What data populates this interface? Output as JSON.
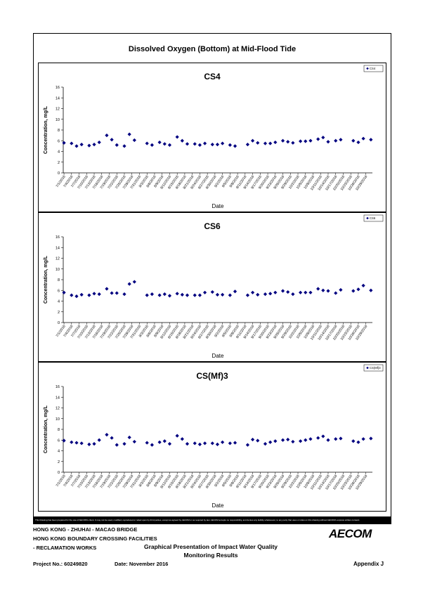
{
  "page_title": "Dissolved Oxygen (Bottom) at Mid-Flood Tide",
  "disclaimer": "This Drawing has been prepared for the use of AECOM's client. It may not be used, modified, reproduced or relied upon by third parties, except as agreed by AECOM or as required by law. AECOM accepts no responsibility, and denies any liability whatsoever, to any party that uses or relies on this drawing without AECOM's express written consent.",
  "footer": {
    "line1": "HONG KONG - ZHUHAI - MACAO BRIDGE",
    "line2": "HONG KONG BOUNDARY CROSSING FACILITIES",
    "line3": "- RECLAMATION WORKS",
    "center1": "Graphical Presentation of Impact Water Quality",
    "center2": "Monitoring Results",
    "project": "Project No.: 60249820",
    "date": "Date: November 2016",
    "appendix": "Appendix J",
    "logo": "AECOM"
  },
  "colors": {
    "marker": "#000080"
  },
  "chart_data": [
    {
      "type": "scatter",
      "title": "CS4",
      "xlabel": "Date",
      "ylabel": "Concentration, mg/L",
      "ylim": [
        0,
        16
      ],
      "yticks": [
        0,
        2,
        4,
        6,
        8,
        10,
        12,
        14,
        16
      ],
      "legend_position": "top-right",
      "series": [
        {
          "name": "CS4",
          "x": [
            "7/1/2016",
            "7/4/2016",
            "7/6/2016",
            "7/8/2016",
            "7/11/2016",
            "7/13/2016",
            "7/15/2016",
            "7/18/2016",
            "7/20/2016",
            "7/22/2016",
            "7/25/2016",
            "7/27/2016",
            "7/29/2016",
            "8/3/2016",
            "8/5/2016",
            "8/8/2016",
            "8/10/2016",
            "8/12/2016",
            "8/15/2016",
            "8/17/2016",
            "8/19/2016",
            "8/22/2016",
            "8/24/2016",
            "8/26/2016",
            "8/29/2016",
            "8/31/2016",
            "9/2/2016",
            "9/5/2016",
            "9/7/2016",
            "9/12/2016",
            "9/14/2016",
            "9/16/2016",
            "9/19/2016",
            "9/21/2016",
            "9/23/2016",
            "9/26/2016",
            "9/28/2016",
            "9/30/2016",
            "10/3/2016",
            "10/5/2016",
            "10/7/2016",
            "10/10/2016",
            "10/12/2016",
            "10/14/2016",
            "10/17/2016",
            "10/19/2016",
            "10/24/2016",
            "10/26/2016",
            "10/28/2016",
            "10/31/2016"
          ],
          "y": [
            5.6,
            5.5,
            5.0,
            5.3,
            5.1,
            5.3,
            5.7,
            7.0,
            6.2,
            5.2,
            5.0,
            7.2,
            6.1,
            5.5,
            5.2,
            5.7,
            5.4,
            5.2,
            6.7,
            6.0,
            5.4,
            5.4,
            5.2,
            5.5,
            5.3,
            5.3,
            5.5,
            5.2,
            5.0,
            5.3,
            6.0,
            5.6,
            5.5,
            5.5,
            5.7,
            6.0,
            5.8,
            5.6,
            5.9,
            5.9,
            6.0,
            6.3,
            6.6,
            5.8,
            6.0,
            6.2,
            6.0,
            5.7,
            6.4,
            6.2
          ]
        }
      ],
      "x_ticks": [
        "7/1/2016",
        "7/4/2016",
        "7/7/2016",
        "7/10/2016",
        "7/13/2016",
        "7/16/2016",
        "7/19/2016",
        "7/22/2016",
        "7/25/2016",
        "7/28/2016",
        "7/31/2016",
        "8/3/2016",
        "8/6/2016",
        "8/9/2016",
        "8/12/2016",
        "8/15/2016",
        "8/18/2016",
        "8/21/2016",
        "8/24/2016",
        "8/27/2016",
        "8/30/2016",
        "9/2/2016",
        "9/5/2016",
        "9/8/2016",
        "9/11/2016",
        "9/14/2016",
        "9/17/2016",
        "9/20/2016",
        "9/23/2016",
        "9/26/2016",
        "9/29/2016",
        "10/2/2016",
        "10/5/2016",
        "10/8/2016",
        "10/11/2016",
        "10/14/2016",
        "10/17/2016",
        "10/20/2016",
        "10/23/2016",
        "10/26/2016",
        "10/29/2016"
      ]
    },
    {
      "type": "scatter",
      "title": "CS6",
      "xlabel": "Date",
      "ylabel": "Concentration, mg/L",
      "ylim": [
        0,
        16
      ],
      "yticks": [
        0,
        2,
        4,
        6,
        8,
        10,
        12,
        14,
        16
      ],
      "legend_position": "top-right",
      "series": [
        {
          "name": "CS6",
          "x": [
            "7/1/2016",
            "7/4/2016",
            "7/6/2016",
            "7/8/2016",
            "7/11/2016",
            "7/13/2016",
            "7/15/2016",
            "7/18/2016",
            "7/20/2016",
            "7/22/2016",
            "7/25/2016",
            "7/27/2016",
            "7/29/2016",
            "8/3/2016",
            "8/5/2016",
            "8/8/2016",
            "8/10/2016",
            "8/12/2016",
            "8/15/2016",
            "8/17/2016",
            "8/19/2016",
            "8/22/2016",
            "8/24/2016",
            "8/26/2016",
            "8/29/2016",
            "8/31/2016",
            "9/2/2016",
            "9/5/2016",
            "9/7/2016",
            "9/12/2016",
            "9/14/2016",
            "9/16/2016",
            "9/19/2016",
            "9/21/2016",
            "9/23/2016",
            "9/26/2016",
            "9/28/2016",
            "9/30/2016",
            "10/3/2016",
            "10/5/2016",
            "10/7/2016",
            "10/10/2016",
            "10/12/2016",
            "10/14/2016",
            "10/17/2016",
            "10/19/2016",
            "10/24/2016",
            "10/26/2016",
            "10/28/2016",
            "10/31/2016"
          ],
          "y": [
            5.6,
            5.1,
            4.9,
            5.2,
            5.1,
            5.4,
            5.3,
            6.3,
            5.5,
            5.5,
            5.3,
            7.2,
            7.6,
            5.1,
            5.3,
            5.1,
            5.3,
            5.0,
            5.4,
            5.2,
            5.1,
            5.1,
            5.1,
            5.6,
            5.7,
            5.2,
            5.2,
            5.1,
            5.8,
            5.1,
            5.6,
            5.2,
            5.3,
            5.4,
            5.6,
            5.9,
            5.7,
            5.3,
            5.6,
            5.6,
            5.6,
            6.3,
            6.0,
            5.9,
            5.5,
            6.1,
            5.9,
            6.2,
            6.9,
            6.0
          ]
        }
      ],
      "x_ticks": [
        "7/1/2016",
        "7/4/2016",
        "7/7/2016",
        "7/10/2016",
        "7/13/2016",
        "7/16/2016",
        "7/19/2016",
        "7/22/2016",
        "7/25/2016",
        "7/28/2016",
        "7/31/2016",
        "8/3/2016",
        "8/6/2016",
        "8/9/2016",
        "8/12/2016",
        "8/15/2016",
        "8/18/2016",
        "8/21/2016",
        "8/24/2016",
        "8/27/2016",
        "8/30/2016",
        "9/2/2016",
        "9/5/2016",
        "9/8/2016",
        "9/11/2016",
        "9/14/2016",
        "9/17/2016",
        "9/20/2016",
        "9/23/2016",
        "9/26/2016",
        "9/29/2016",
        "10/2/2016",
        "10/5/2016",
        "10/8/2016",
        "10/11/2016",
        "10/14/2016",
        "10/17/2016",
        "10/20/2016",
        "10/23/2016",
        "10/26/2016",
        "10/29/2016"
      ]
    },
    {
      "type": "scatter",
      "title": "CS(Mf)3",
      "xlabel": "Date",
      "ylabel": "Concentration, mg/L",
      "ylim": [
        0,
        16
      ],
      "yticks": [
        0,
        2,
        4,
        6,
        8,
        10,
        12,
        14,
        16
      ],
      "legend_position": "top-right",
      "series": [
        {
          "name": "CS(Mf)3",
          "x": [
            "7/1/2016",
            "7/4/2016",
            "7/6/2016",
            "7/8/2016",
            "7/11/2016",
            "7/13/2016",
            "7/15/2016",
            "7/18/2016",
            "7/20/2016",
            "7/22/2016",
            "7/25/2016",
            "7/27/2016",
            "7/29/2016",
            "8/3/2016",
            "8/5/2016",
            "8/8/2016",
            "8/10/2016",
            "8/12/2016",
            "8/15/2016",
            "8/17/2016",
            "8/19/2016",
            "8/22/2016",
            "8/24/2016",
            "8/26/2016",
            "8/29/2016",
            "8/31/2016",
            "9/2/2016",
            "9/5/2016",
            "9/7/2016",
            "9/12/2016",
            "9/14/2016",
            "9/16/2016",
            "9/19/2016",
            "9/21/2016",
            "9/23/2016",
            "9/26/2016",
            "9/28/2016",
            "9/30/2016",
            "10/3/2016",
            "10/5/2016",
            "10/7/2016",
            "10/10/2016",
            "10/12/2016",
            "10/14/2016",
            "10/17/2016",
            "10/19/2016",
            "10/24/2016",
            "10/26/2016",
            "10/28/2016",
            "10/31/2016"
          ],
          "y": [
            5.9,
            5.6,
            5.5,
            5.4,
            5.2,
            5.3,
            6.0,
            7.0,
            6.4,
            5.1,
            5.3,
            6.5,
            5.7,
            5.5,
            5.1,
            5.6,
            5.8,
            5.3,
            6.8,
            6.2,
            5.3,
            5.4,
            5.2,
            5.4,
            5.4,
            5.2,
            5.6,
            5.4,
            5.5,
            5.1,
            6.1,
            5.9,
            5.3,
            5.6,
            5.8,
            6.0,
            6.1,
            5.7,
            5.8,
            6.0,
            6.2,
            6.4,
            6.7,
            6.0,
            6.2,
            6.3,
            5.8,
            5.6,
            6.2,
            6.3
          ]
        }
      ],
      "x_ticks": [
        "7/1/2016",
        "7/4/2016",
        "7/7/2016",
        "7/10/2016",
        "7/13/2016",
        "7/16/2016",
        "7/19/2016",
        "7/22/2016",
        "7/25/2016",
        "7/28/2016",
        "7/31/2016",
        "8/3/2016",
        "8/6/2016",
        "8/9/2016",
        "8/12/2016",
        "8/15/2016",
        "8/18/2016",
        "8/21/2016",
        "8/24/2016",
        "8/27/2016",
        "8/30/2016",
        "9/2/2016",
        "9/5/2016",
        "9/8/2016",
        "9/11/2016",
        "9/14/2016",
        "9/17/2016",
        "9/20/2016",
        "9/23/2016",
        "9/26/2016",
        "9/29/2016",
        "10/2/2016",
        "10/5/2016",
        "10/8/2016",
        "10/11/2016",
        "10/14/2016",
        "10/17/2016",
        "10/20/2016",
        "10/23/2016",
        "10/26/2016",
        "10/29/2016"
      ]
    }
  ]
}
